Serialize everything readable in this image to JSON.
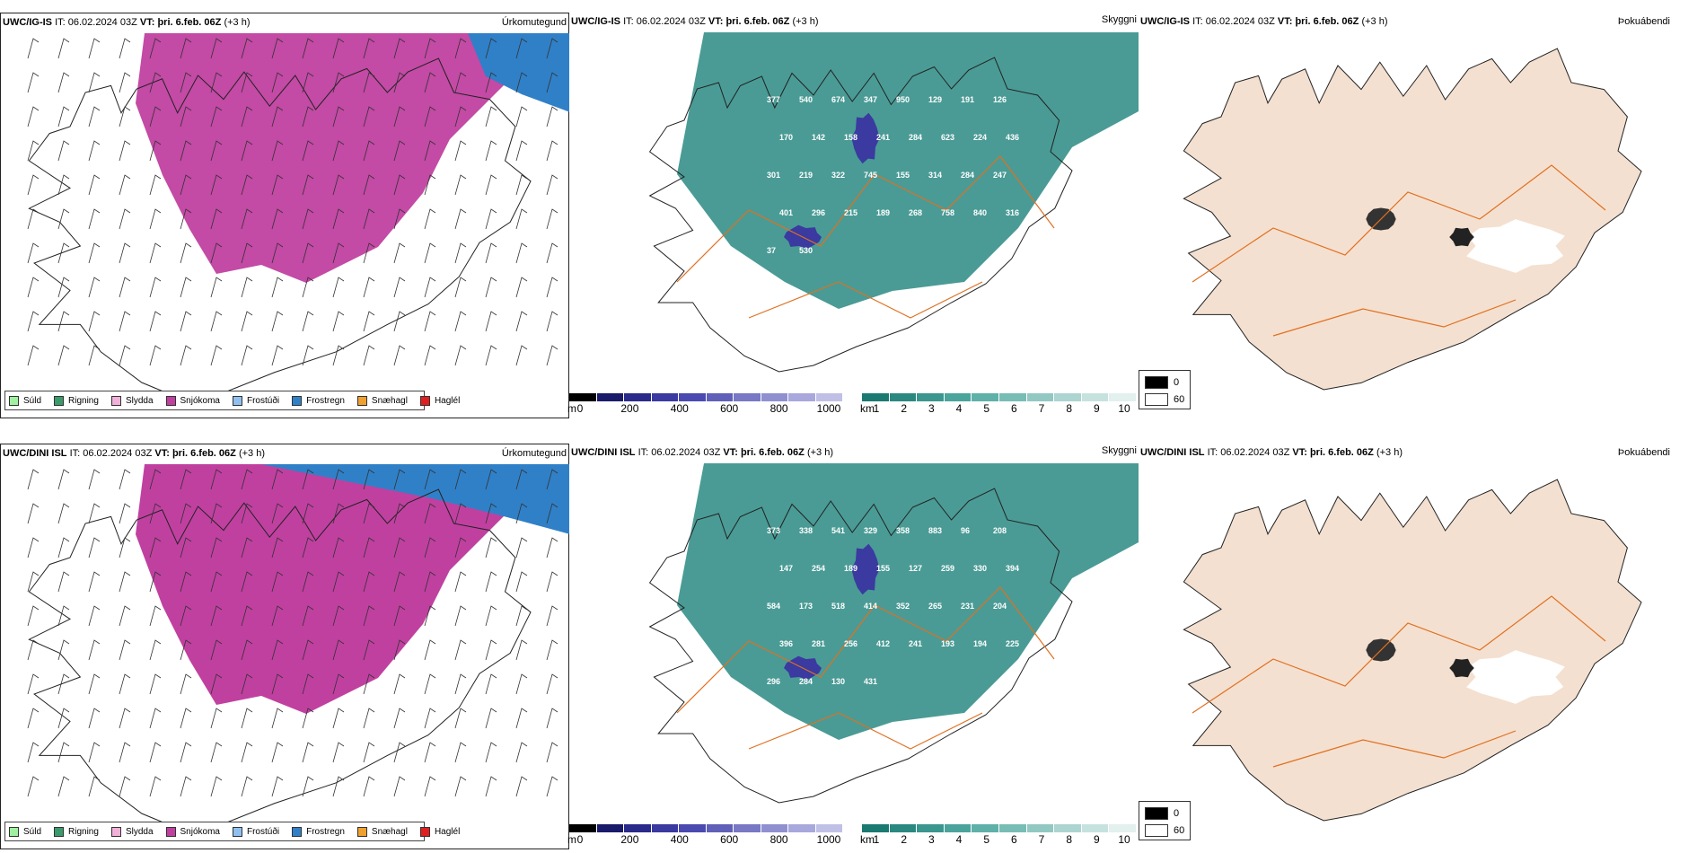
{
  "rows": [
    {
      "model": "UWC/IG-IS",
      "it_label": "IT:",
      "it_value": "06.02.2024 03Z",
      "vt_label": "VT:",
      "vt_value": "þri. 6.feb. 06Z",
      "lead": "(+3 h)"
    },
    {
      "model": "UWC/DINI ISL",
      "it_label": "IT:",
      "it_value": "06.02.2024 03Z",
      "vt_label": "VT:",
      "vt_value": "þri. 6.feb. 06Z",
      "lead": "(+3 h)"
    }
  ],
  "panel_titles": {
    "precip": "Úrkomutegund",
    "cloud": "Skyggni",
    "fog": "Þokuábendi"
  },
  "precip_legend": [
    {
      "label": "Súld",
      "color": "#a0f0a0"
    },
    {
      "label": "Rigning",
      "color": "#3a9a6a"
    },
    {
      "label": "Slydda",
      "color": "#f0b0d8"
    },
    {
      "label": "Snjókoma",
      "color": "#c040a0"
    },
    {
      "label": "Frostúði",
      "color": "#90c0f0"
    },
    {
      "label": "Frostregn",
      "color": "#3080c8"
    },
    {
      "label": "Snæhagl",
      "color": "#f0a030"
    },
    {
      "label": "Haglél",
      "color": "#e02020"
    }
  ],
  "ceiling_bar": {
    "unit": "m",
    "ticks": [
      "0",
      "200",
      "400",
      "600",
      "800",
      "1000"
    ],
    "colors": [
      "#000000",
      "#1a1a6a",
      "#2a2a8a",
      "#3a3aa0",
      "#4a4ab0",
      "#6060b8",
      "#7878c4",
      "#9090d0",
      "#a8a8dc",
      "#c0c0e6"
    ]
  },
  "visibility_bar": {
    "unit": "km",
    "ticks": [
      "1",
      "2",
      "3",
      "4",
      "5",
      "6",
      "7",
      "8",
      "9",
      "10"
    ],
    "colors": [
      "#1a7a72",
      "#2a8880",
      "#3a968e",
      "#4aa49c",
      "#5eb0a8",
      "#78bcb6",
      "#92c8c2",
      "#acd4d0",
      "#c6e2de",
      "#e2f0ee"
    ]
  },
  "fog_legend": {
    "low": "0",
    "high": "60"
  },
  "cloud_labels_top": [
    "377",
    "540",
    "674",
    "347",
    "950",
    "129",
    "191",
    "126",
    "170",
    "142",
    "158",
    "241",
    "284",
    "623",
    "224",
    "436",
    "301",
    "219",
    "322",
    "745",
    "155",
    "314",
    "284",
    "247",
    "401",
    "296",
    "215",
    "189",
    "268",
    "758",
    "840",
    "316",
    "37",
    "530"
  ],
  "cloud_labels_bottom": [
    "373",
    "338",
    "541",
    "329",
    "358",
    "883",
    "96",
    "208",
    "147",
    "254",
    "189",
    "155",
    "127",
    "259",
    "330",
    "394",
    "584",
    "173",
    "518",
    "414",
    "352",
    "265",
    "231",
    "204",
    "396",
    "281",
    "256",
    "412",
    "241",
    "193",
    "194",
    "225",
    "296",
    "284",
    "130",
    "431"
  ],
  "colors": {
    "snow": "#c040a0",
    "freezing_rain": "#3080c8",
    "teal": "#2a8a82",
    "lowcloud": "#3a3aa0",
    "land_fog": "#f4e0d0",
    "road": "#e07020"
  }
}
